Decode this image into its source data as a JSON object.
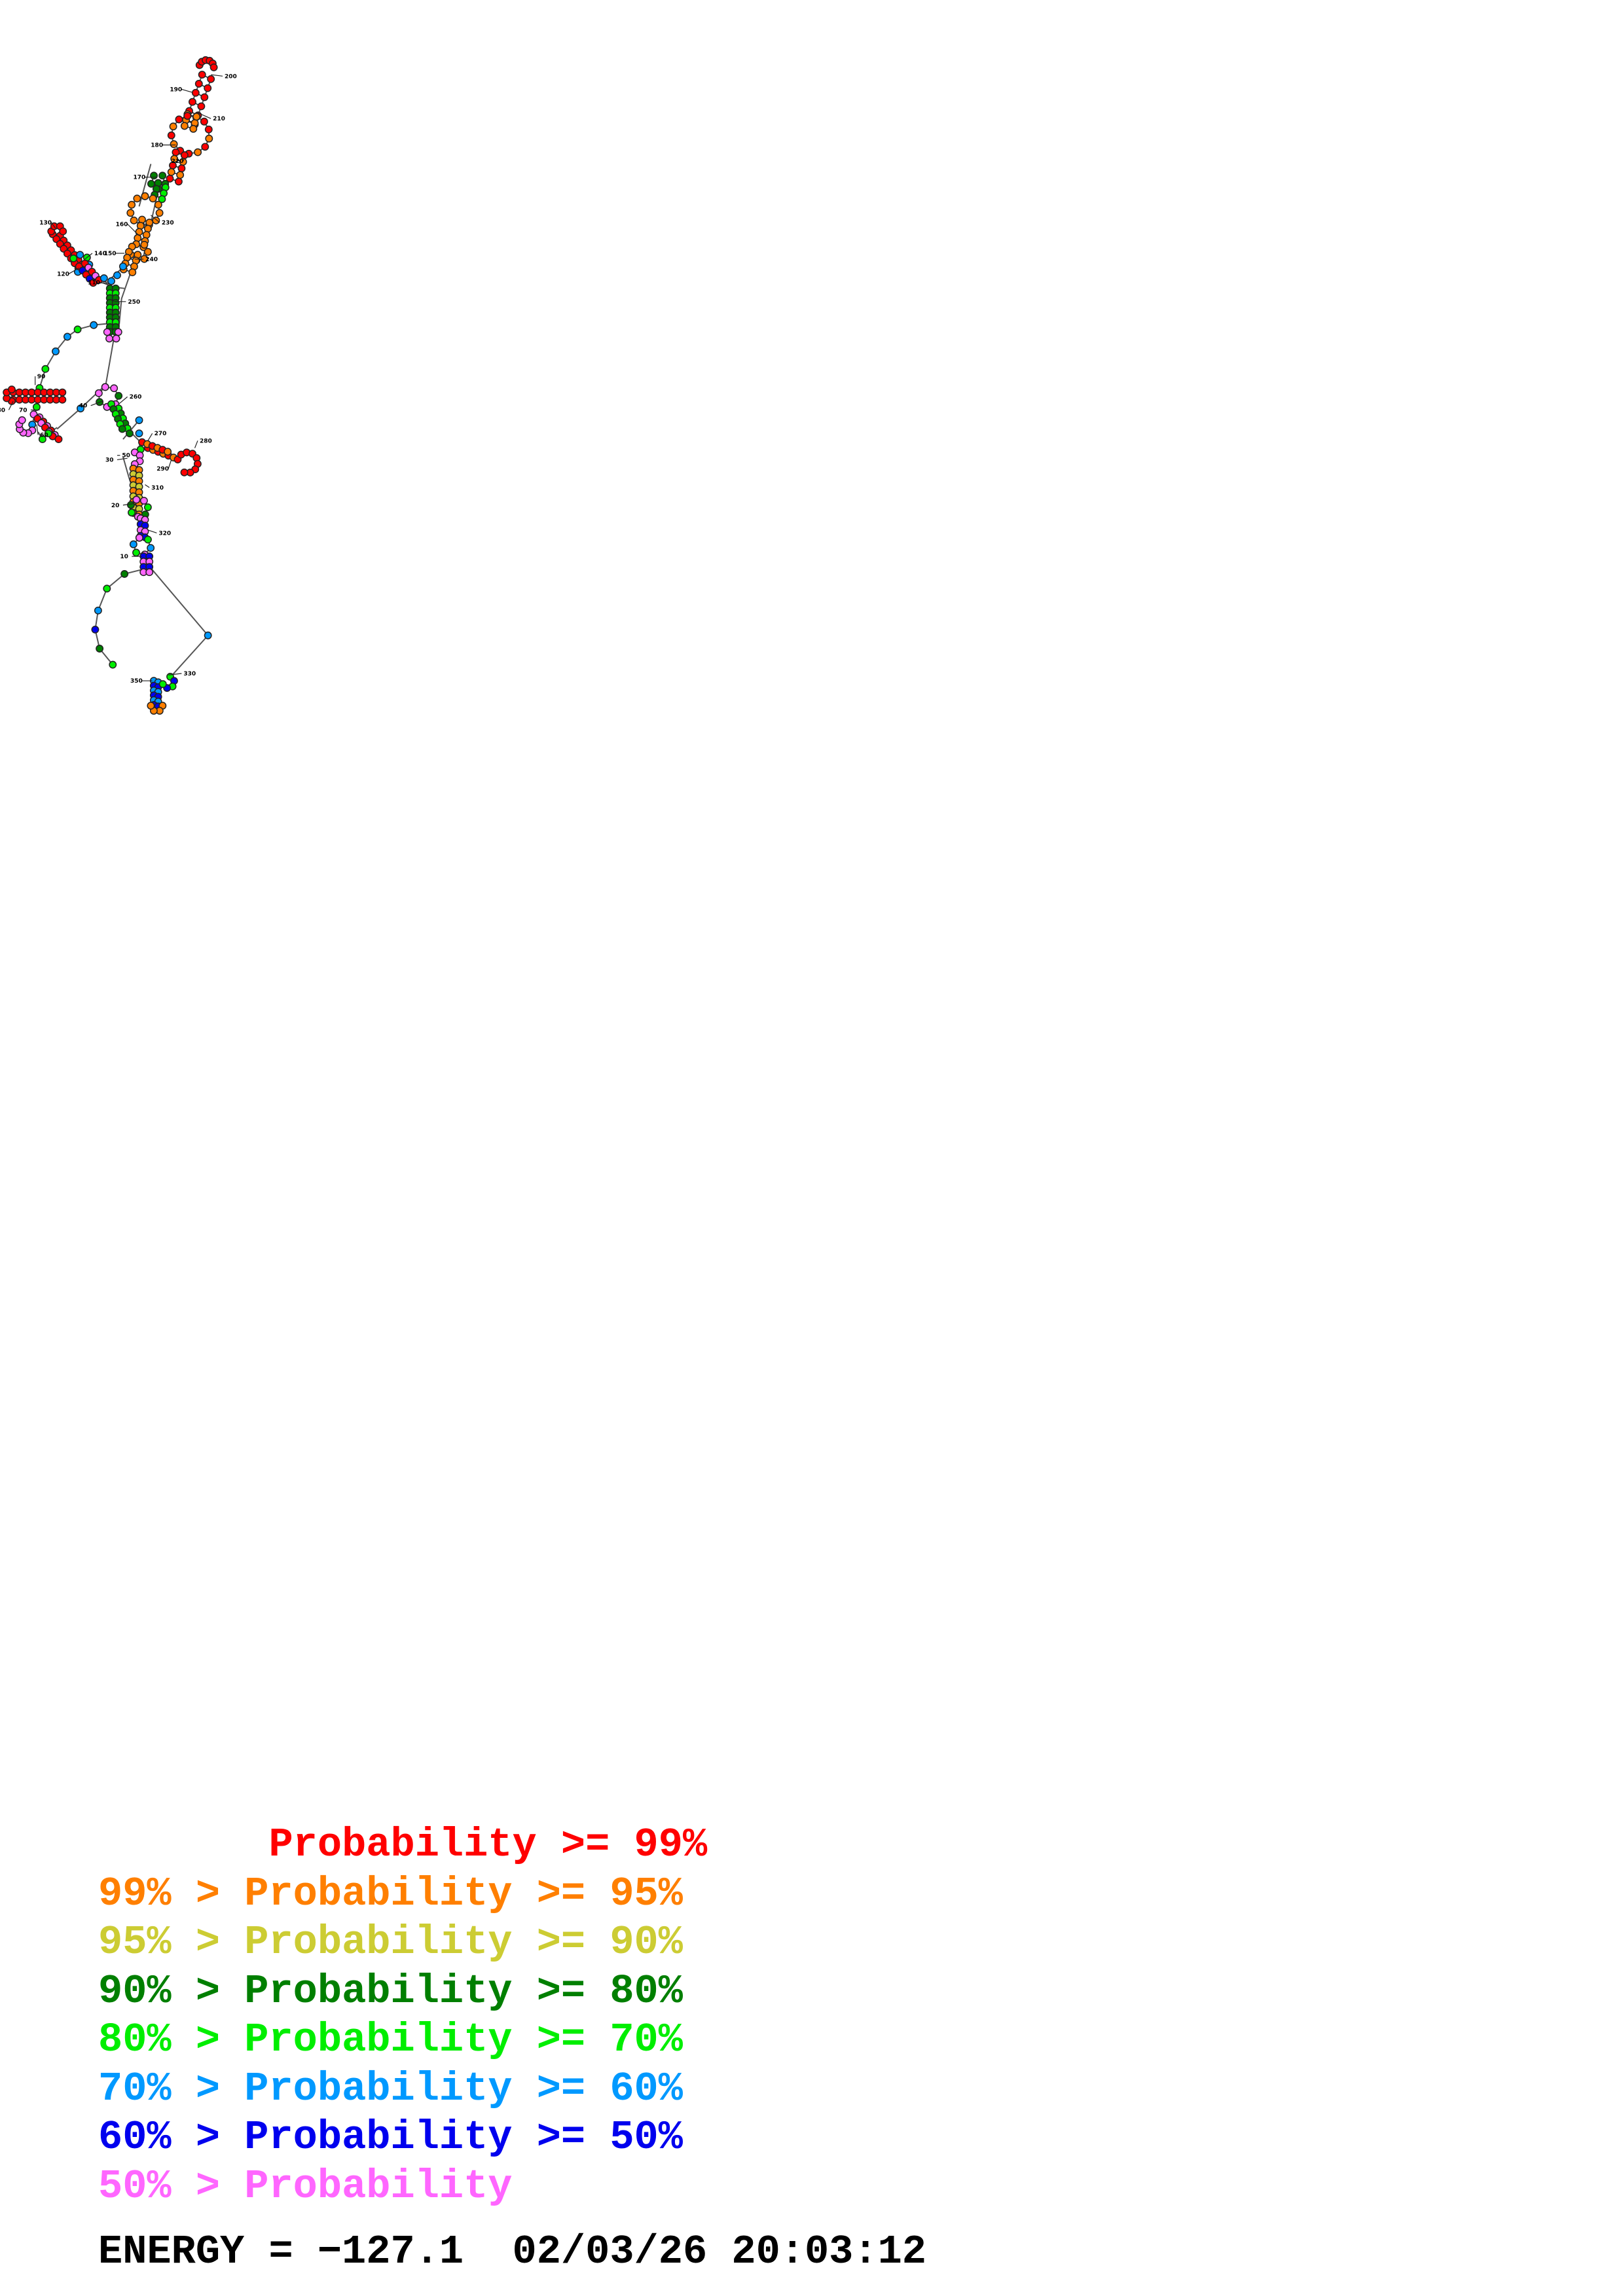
{
  "legend": [
    {
      "prefix": "       ",
      "label": "Probability >= 99%",
      "color": "#ff0000"
    },
    {
      "prefix": "99% > ",
      "label": "Probability >= 95%",
      "color": "#ff7f00"
    },
    {
      "prefix": "95% > ",
      "label": "Probability >= 90%",
      "color": "#cccc33"
    },
    {
      "prefix": "90% > ",
      "label": "Probability >= 80%",
      "color": "#007f00"
    },
    {
      "prefix": "80% > ",
      "label": "Probability >= 70%",
      "color": "#00ee00"
    },
    {
      "prefix": "70% > ",
      "label": "Probability >= 60%",
      "color": "#0099ff"
    },
    {
      "prefix": "60% > ",
      "label": "Probability >= 50%",
      "color": "#0000ee"
    },
    {
      "prefix": "50% > ",
      "label": "Probability",
      "color": "#ff66ff"
    }
  ],
  "energy_line": "ENERGY = −127.1  02/03/26 20:03:12",
  "index_labels": [
    "200",
    "190",
    "210",
    "180",
    "220",
    "170",
    "230",
    "160",
    "240",
    "150",
    "130",
    "140",
    "120",
    "110",
    "250",
    "90",
    "80",
    "70",
    "60",
    "40",
    "260",
    "270",
    "280",
    "290",
    "50",
    "30",
    "310",
    "20",
    "320",
    "10",
    "330",
    "350"
  ],
  "probability_colors": {
    "p99": "#ff0000",
    "p95": "#ff7f00",
    "p90": "#cccc33",
    "p80": "#007f00",
    "p70": "#00ee00",
    "p60": "#0099ff",
    "p50": "#0000ee",
    "plow": "#ff66ff"
  }
}
